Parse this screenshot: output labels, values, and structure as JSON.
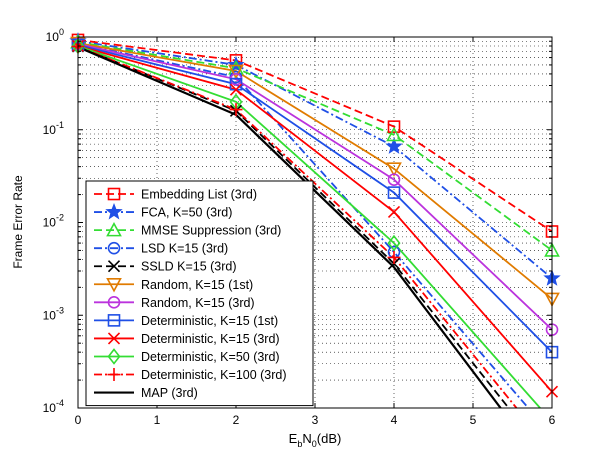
{
  "chart_data": {
    "type": "line",
    "title": "",
    "xlabel": {
      "base": "E",
      "sub1": "b",
      "mid": "N",
      "sub2": "0",
      "tail": "(dB)"
    },
    "ylabel": "Frame Error Rate",
    "xlim": [
      0,
      6
    ],
    "ylim": [
      0.0001,
      1
    ],
    "yscale": "log",
    "grid": true,
    "legend_position": "bottom-left",
    "xticks": [
      {
        "value": 0,
        "label": "0"
      },
      {
        "value": 1,
        "label": "1"
      },
      {
        "value": 2,
        "label": "2"
      },
      {
        "value": 3,
        "label": "3"
      },
      {
        "value": 4,
        "label": "4"
      },
      {
        "value": 5,
        "label": "5"
      },
      {
        "value": 6,
        "label": "6"
      }
    ],
    "yticks": [
      {
        "value": 1,
        "base": "10",
        "exp": "0"
      },
      {
        "value": 0.1,
        "base": "10",
        "exp": "-1"
      },
      {
        "value": 0.01,
        "base": "10",
        "exp": "-2"
      },
      {
        "value": 0.001,
        "base": "10",
        "exp": "-3"
      },
      {
        "value": 0.0001,
        "base": "10",
        "exp": "-4"
      }
    ],
    "x": [
      0,
      2,
      4,
      6
    ],
    "series": [
      {
        "name": "Embedding List (3rd)",
        "color": "#ff0000",
        "dash": "dashed",
        "marker": "square",
        "values": [
          0.93,
          0.56,
          0.108,
          0.008
        ]
      },
      {
        "name": "FCA, K=50 (3rd)",
        "color": "#1f4fe6",
        "dash": "dashdot",
        "marker": "star",
        "values": [
          0.9,
          0.5,
          0.066,
          0.0025
        ]
      },
      {
        "name": "MMSE Suppression (3rd)",
        "color": "#33dd33",
        "dash": "dashed",
        "marker": "triangle-up",
        "values": [
          0.88,
          0.46,
          0.088,
          0.005
        ]
      },
      {
        "name": "LSD K=15 (3rd)",
        "color": "#1f4fe6",
        "dash": "dashdot",
        "marker": "circle",
        "values": [
          0.85,
          0.37,
          0.0048,
          null
        ]
      },
      {
        "name": "SSLD K=15 (3rd)",
        "color": "#000000",
        "dash": "dashed",
        "marker": "x",
        "values": [
          0.79,
          0.16,
          0.0036,
          null
        ]
      },
      {
        "name": "Random, K=15 (1st)",
        "color": "#e07b00",
        "dash": "solid",
        "marker": "triangle-down",
        "values": [
          0.86,
          0.43,
          0.038,
          0.0015
        ]
      },
      {
        "name": "Random, K=15 (3rd)",
        "color": "#bb33dd",
        "dash": "solid",
        "marker": "circle",
        "values": [
          0.84,
          0.35,
          0.029,
          0.0007
        ]
      },
      {
        "name": "Deterministic, K=15 (1st)",
        "color": "#1f4fe6",
        "dash": "solid",
        "marker": "square",
        "values": [
          0.82,
          0.31,
          0.021,
          0.0004
        ]
      },
      {
        "name": "Deterministic, K=15 (3rd)",
        "color": "#ff0000",
        "dash": "solid",
        "marker": "x",
        "values": [
          0.8,
          0.27,
          0.013,
          0.00015
        ]
      },
      {
        "name": "Deterministic, K=50 (3rd)",
        "color": "#33dd33",
        "dash": "solid",
        "marker": "diamond",
        "values": [
          0.8,
          0.2,
          0.006,
          null
        ]
      },
      {
        "name": "Deterministic, K=100 (3rd)",
        "color": "#ff0000",
        "dash": "dashdot",
        "marker": "plus",
        "values": [
          0.79,
          0.165,
          0.0042,
          null
        ]
      },
      {
        "name": "MAP (3rd)",
        "color": "#000000",
        "dash": "solid",
        "marker": "none",
        "values": [
          0.78,
          0.145,
          0.0033,
          null
        ]
      }
    ],
    "tails": [
      {
        "series": "LSD K=15 (3rd)",
        "x": 5.7,
        "y": 0.0001
      },
      {
        "series": "SSLD K=15 (3rd)",
        "x": 5.45,
        "y": 0.0001
      },
      {
        "series": "Deterministic, K=50 (3rd)",
        "x": 5.85,
        "y": 0.0001
      },
      {
        "series": "Deterministic, K=100 (3rd)",
        "x": 5.55,
        "y": 0.0001
      },
      {
        "series": "MAP (3rd)",
        "x": 5.35,
        "y": 0.0001
      }
    ]
  }
}
